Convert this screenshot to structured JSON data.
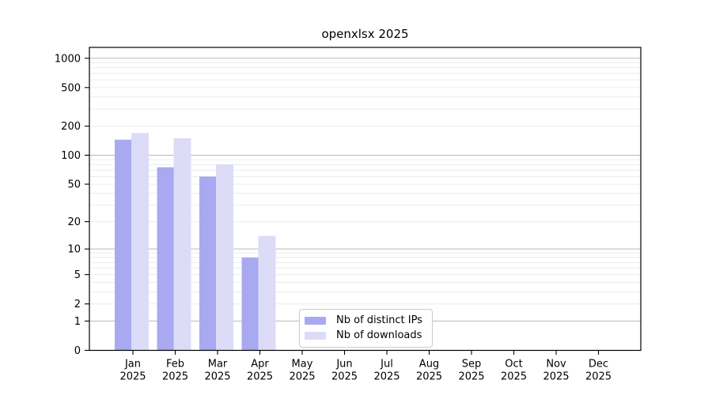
{
  "chart_data": {
    "type": "bar",
    "title": "openxlsx 2025",
    "categories": [
      "Jan",
      "Feb",
      "Mar",
      "Apr",
      "May",
      "Jun",
      "Jul",
      "Aug",
      "Sep",
      "Oct",
      "Nov",
      "Dec"
    ],
    "year_label": "2025",
    "series": [
      {
        "name": "Nb of distinct IPs",
        "color": "#a9a9f2",
        "values": [
          145,
          75,
          60,
          8,
          0,
          0,
          0,
          0,
          0,
          0,
          0,
          0
        ]
      },
      {
        "name": "Nb of downloads",
        "color": "#dcdcf8",
        "values": [
          170,
          150,
          80,
          14,
          0,
          0,
          0,
          0,
          0,
          0,
          0,
          0
        ]
      }
    ],
    "y_ticks": [
      0,
      1,
      2,
      5,
      10,
      20,
      50,
      100,
      200,
      500,
      1000
    ],
    "yscale": "log1p",
    "ylim": [
      0,
      1294
    ],
    "grid": true,
    "legend_position": "lower-center-inside"
  },
  "colors": {
    "grid_minor": "#ececec",
    "grid_major": "#b9b9b9",
    "spine": "#000000",
    "tick": "#000000",
    "legend_border": "#cccccc",
    "background": "#ffffff"
  }
}
